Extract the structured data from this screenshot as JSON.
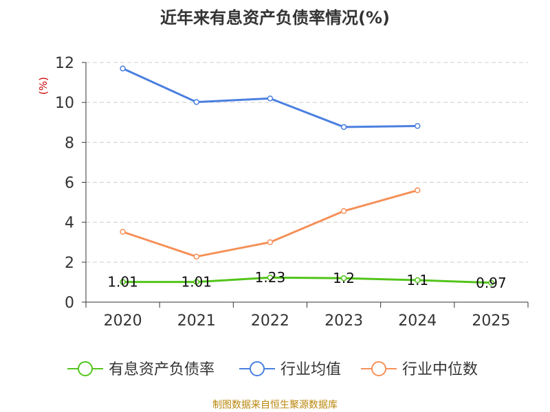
{
  "chart_data": {
    "type": "line",
    "title": "近年来有息资产负债率情况(%)",
    "ylabel": "(%)",
    "categories": [
      "2020",
      "2021",
      "2022",
      "2023",
      "2024",
      "2025"
    ],
    "ylim": [
      0,
      12
    ],
    "yticks": [
      "0",
      "2",
      "4",
      "6",
      "8",
      "10",
      "12"
    ],
    "grid": true,
    "legend_position": "bottom",
    "series": [
      {
        "name": "有息资产负债率",
        "color": "#52c41a",
        "values": [
          1.01,
          1.01,
          1.23,
          1.2,
          1.1,
          0.97
        ],
        "labels": [
          "1.01",
          "1.01",
          "1.23",
          "1.2",
          "1.1",
          "0.97"
        ]
      },
      {
        "name": "行业均值",
        "color": "#4a7fe0",
        "values": [
          11.7,
          10.02,
          10.2,
          8.77,
          8.82,
          null
        ]
      },
      {
        "name": "行业中位数",
        "color": "#f59058",
        "values": [
          3.52,
          2.28,
          3.0,
          4.56,
          5.6,
          null
        ]
      }
    ]
  },
  "source": "制图数据来自恒生聚源数据库"
}
